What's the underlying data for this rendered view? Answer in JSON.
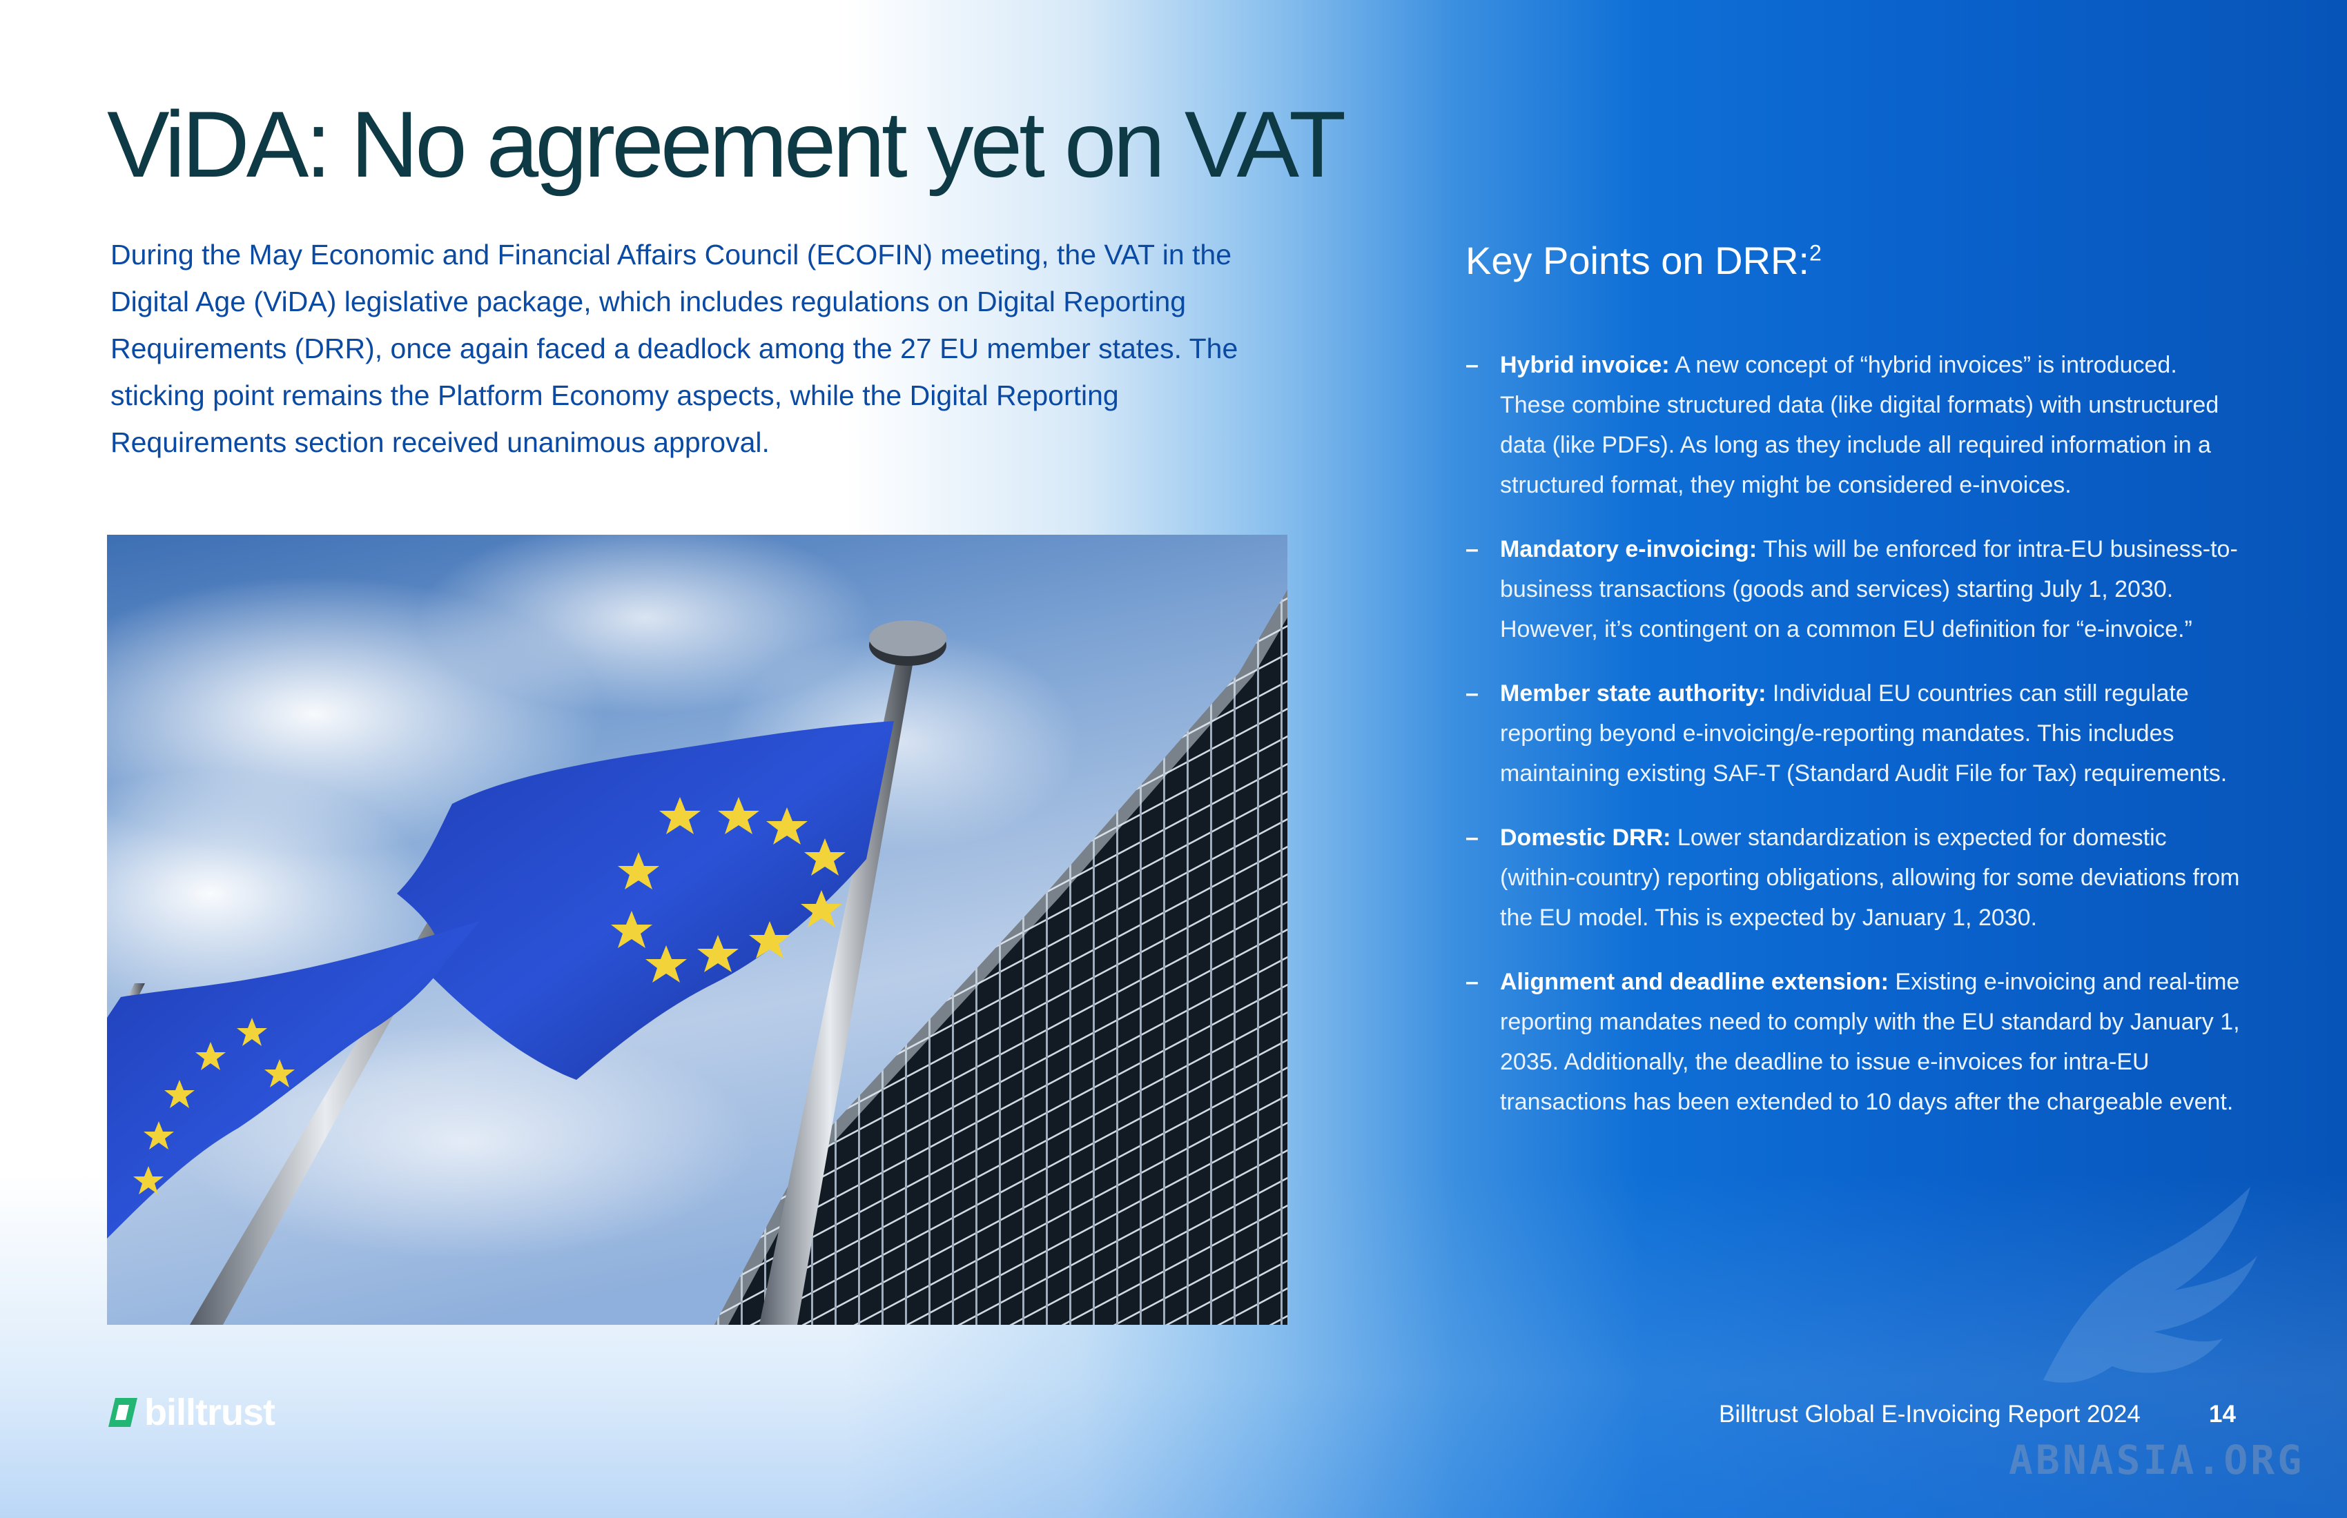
{
  "page": {
    "title": "ViDA: No agreement yet on VAT",
    "intro": "During the May Economic and Financial Affairs Council (ECOFIN) meeting, the VAT in the Digital Age (ViDA) legislative package, which includes regulations on Digital Reporting Requirements (DRR), once again faced a deadlock among the 27 EU member states. The sticking point remains the Platform Economy aspects, while the Digital Reporting Requirements section received unanimous approval."
  },
  "photo": {
    "icon": "eu-flags-photo"
  },
  "key_points": {
    "title": "Key Points on DRR:",
    "footnote": "2",
    "bullet": "–",
    "items": [
      {
        "lead": "Hybrid invoice:",
        "text": " A new concept of “hybrid invoices” is introduced. These combine structured data (like digital formats) with unstructured data (like PDFs). As long as they include all required information in a structured format, they might be considered e-invoices."
      },
      {
        "lead": "Mandatory e-invoicing:",
        "text": " This will be enforced for intra-EU business-to-business transactions (goods and services) starting July 1, 2030. However, it’s contingent on a common EU definition for “e-invoice.”"
      },
      {
        "lead": "Member state authority:",
        "text": " Individual EU countries can still regulate reporting beyond e-invoicing/e-reporting mandates. This includes maintaining existing SAF-T (Standard Audit File for Tax) requirements."
      },
      {
        "lead": "Domestic DRR:",
        "text": " Lower standardization is expected for domestic (within-country) reporting obligations, allowing for some deviations from the EU model. This is expected by January 1, 2030."
      },
      {
        "lead": "Alignment and deadline extension:",
        "text": " Existing e-invoicing and real-time reporting mandates need to comply with the EU standard by January 1, 2035. Additionally, the deadline to issue e-invoices for intra-EU transactions has been extended to 10 days after the chargeable event."
      }
    ]
  },
  "footer": {
    "logo_text": "billtrust",
    "report": "Billtrust Global E-Invoicing Report 2024",
    "page_number": "14"
  },
  "watermark": {
    "text": "ABNASIA.ORG"
  },
  "colors": {
    "title": "#0d3a45",
    "intro": "#0b4aa2",
    "logo_green": "#22b573",
    "panel_blue": "#0a62cc"
  }
}
